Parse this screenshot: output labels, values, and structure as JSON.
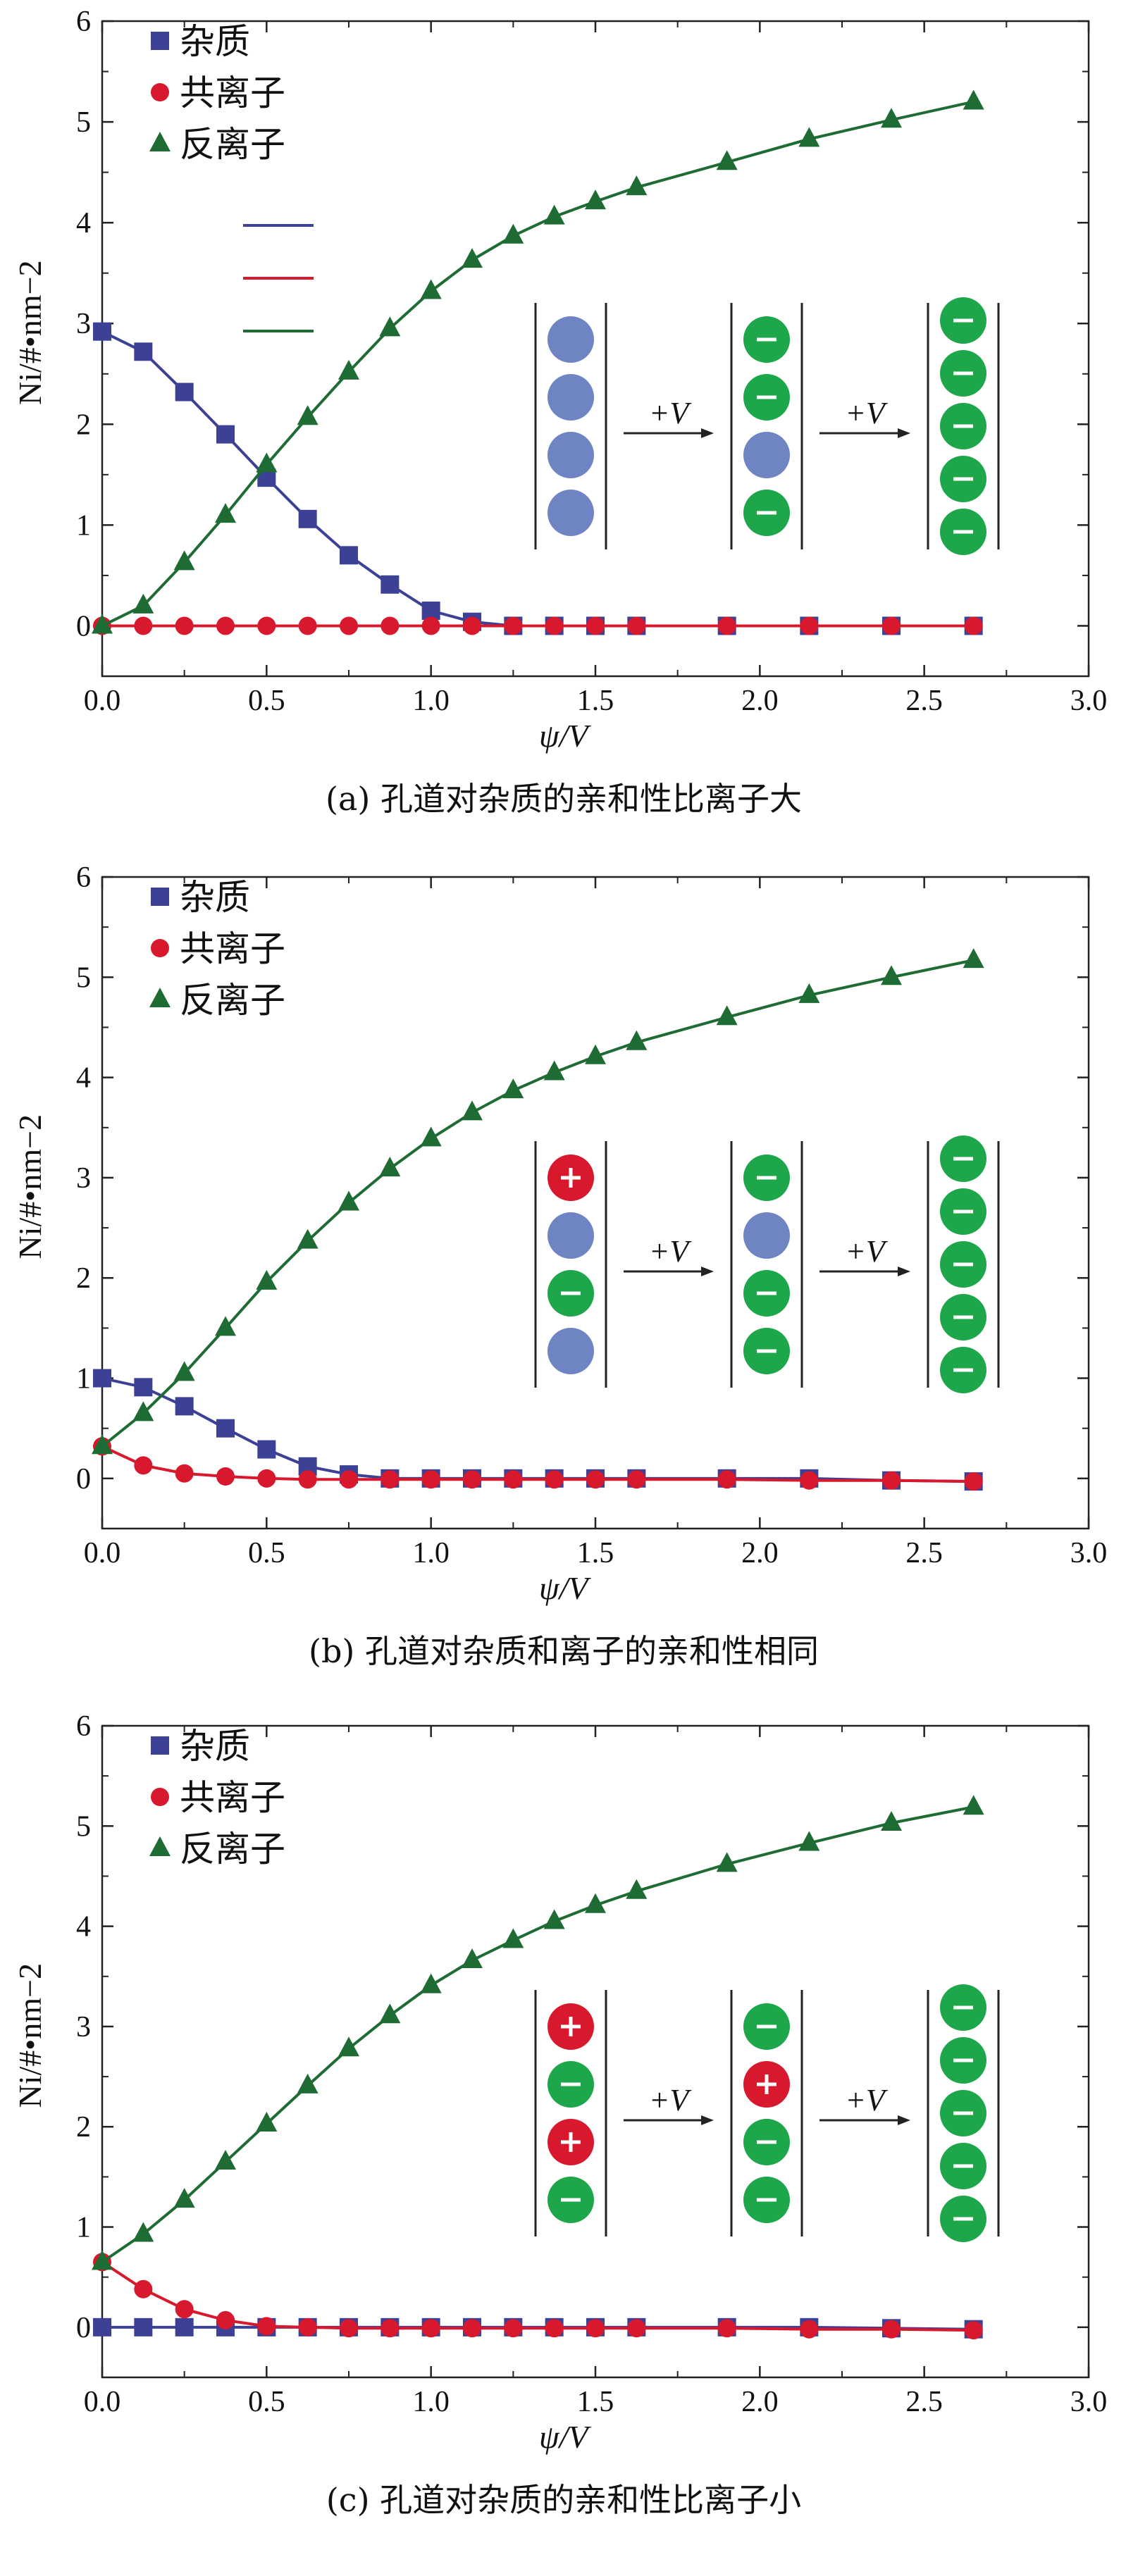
{
  "colors": {
    "impurity": "#3c4196",
    "co_ion": "#d8182c",
    "counter_ion": "#1e6b34",
    "neutral_ball": "#6f84c3",
    "anion_ball": "#1ea64a",
    "cation_ball": "#d8182c"
  },
  "chart_data": [
    {
      "type": "line",
      "caption": "(a) 孔道对杂质的亲和性比离子大",
      "xlabel": "ψ/V",
      "ylabel": "Ni/#•nm−2",
      "xlim": [
        0,
        3.0
      ],
      "ylim": [
        -0.5,
        6
      ],
      "xticks": [
        "0.0",
        "0.5",
        "1.0",
        "1.5",
        "2.0",
        "2.5",
        "3.0"
      ],
      "yticks": [
        "0",
        "1",
        "2",
        "3",
        "4",
        "5",
        "6"
      ],
      "legend_placement": "top-left",
      "series": [
        {
          "name": "杂质",
          "marker": "square",
          "color_key": "impurity",
          "x": [
            0,
            0.125,
            0.25,
            0.375,
            0.5,
            0.625,
            0.75,
            0.875,
            1.0,
            1.125,
            1.25,
            1.375,
            1.5,
            1.625,
            1.9,
            2.15,
            2.4,
            2.65
          ],
          "y": [
            2.92,
            2.72,
            2.32,
            1.9,
            1.47,
            1.06,
            0.7,
            0.41,
            0.15,
            0.04,
            0.0,
            0.0,
            0.0,
            0.0,
            0.0,
            0.0,
            0.0,
            0.0
          ]
        },
        {
          "name": "共离子",
          "marker": "circle",
          "color_key": "co_ion",
          "x": [
            0,
            0.125,
            0.25,
            0.375,
            0.5,
            0.625,
            0.75,
            0.875,
            1.0,
            1.125,
            1.25,
            1.375,
            1.5,
            1.625,
            1.9,
            2.15,
            2.4,
            2.65
          ],
          "y": [
            0.0,
            0.0,
            0.0,
            0.0,
            0.0,
            0.0,
            0.0,
            0.0,
            0.0,
            0.0,
            0.0,
            0.0,
            0.0,
            0.0,
            0.0,
            0.0,
            0.0,
            0.0
          ]
        },
        {
          "name": "反离子",
          "marker": "triangle",
          "color_key": "counter_ion",
          "x": [
            0,
            0.125,
            0.25,
            0.375,
            0.5,
            0.625,
            0.75,
            0.875,
            1.0,
            1.125,
            1.25,
            1.375,
            1.5,
            1.625,
            1.9,
            2.15,
            2.4,
            2.65
          ],
          "y": [
            0.0,
            0.2,
            0.63,
            1.1,
            1.6,
            2.07,
            2.52,
            2.95,
            3.32,
            3.63,
            3.87,
            4.06,
            4.21,
            4.35,
            4.6,
            4.83,
            5.02,
            5.2
          ]
        }
      ],
      "legend_extra_lines": true,
      "inset": {
        "arrow_label": "+V",
        "stages": [
          [
            "neutral",
            "neutral",
            "neutral",
            "neutral"
          ],
          [
            "anion",
            "anion",
            "neutral",
            "anion"
          ],
          [
            "anion",
            "anion",
            "anion",
            "anion",
            "anion"
          ]
        ]
      }
    },
    {
      "type": "line",
      "caption": "(b) 孔道对杂质和离子的亲和性相同",
      "xlabel": "ψ/V",
      "ylabel": "Ni/#•nm−2",
      "xlim": [
        0,
        3.0
      ],
      "ylim": [
        -0.5,
        6
      ],
      "xticks": [
        "0.0",
        "0.5",
        "1.0",
        "1.5",
        "2.0",
        "2.5",
        "3.0"
      ],
      "yticks": [
        "0",
        "1",
        "2",
        "3",
        "4",
        "5",
        "6"
      ],
      "legend_placement": "top-left",
      "series": [
        {
          "name": "杂质",
          "marker": "square",
          "color_key": "impurity",
          "x": [
            0,
            0.125,
            0.25,
            0.375,
            0.5,
            0.625,
            0.75,
            0.875,
            1.0,
            1.125,
            1.25,
            1.375,
            1.5,
            1.625,
            1.9,
            2.15,
            2.4,
            2.65
          ],
          "y": [
            1.0,
            0.91,
            0.72,
            0.5,
            0.29,
            0.12,
            0.04,
            0.0,
            0.0,
            0.0,
            0.0,
            0.0,
            0.0,
            0.0,
            0.0,
            0.0,
            -0.02,
            -0.03
          ]
        },
        {
          "name": "共离子",
          "marker": "circle",
          "color_key": "co_ion",
          "x": [
            0,
            0.125,
            0.25,
            0.375,
            0.5,
            0.625,
            0.75,
            0.875,
            1.0,
            1.125,
            1.25,
            1.375,
            1.5,
            1.625,
            1.9,
            2.15,
            2.4,
            2.65
          ],
          "y": [
            0.32,
            0.13,
            0.05,
            0.02,
            0.0,
            -0.01,
            -0.01,
            -0.01,
            -0.01,
            -0.01,
            -0.01,
            -0.01,
            -0.01,
            -0.01,
            -0.01,
            -0.02,
            -0.02,
            -0.03
          ]
        },
        {
          "name": "反离子",
          "marker": "triangle",
          "color_key": "counter_ion",
          "x": [
            0,
            0.125,
            0.25,
            0.375,
            0.5,
            0.625,
            0.75,
            0.875,
            1.0,
            1.125,
            1.25,
            1.375,
            1.5,
            1.625,
            1.9,
            2.15,
            2.4,
            2.65
          ],
          "y": [
            0.32,
            0.65,
            1.05,
            1.5,
            1.96,
            2.37,
            2.75,
            3.09,
            3.39,
            3.65,
            3.87,
            4.05,
            4.21,
            4.35,
            4.6,
            4.82,
            5.0,
            5.17
          ]
        }
      ],
      "legend_extra_lines": false,
      "inset": {
        "arrow_label": "+V",
        "stages": [
          [
            "cation",
            "neutral",
            "anion",
            "neutral"
          ],
          [
            "anion",
            "neutral",
            "anion",
            "anion"
          ],
          [
            "anion",
            "anion",
            "anion",
            "anion",
            "anion"
          ]
        ]
      }
    },
    {
      "type": "line",
      "caption": "(c) 孔道对杂质的亲和性比离子小",
      "xlabel": "ψ/V",
      "ylabel": "Ni/#•nm−2",
      "xlim": [
        0,
        3.0
      ],
      "ylim": [
        -0.5,
        6
      ],
      "xticks": [
        "0.0",
        "0.5",
        "1.0",
        "1.5",
        "2.0",
        "2.5",
        "3.0"
      ],
      "yticks": [
        "0",
        "1",
        "2",
        "3",
        "4",
        "5",
        "6"
      ],
      "legend_placement": "top-left",
      "series": [
        {
          "name": "杂质",
          "marker": "square",
          "color_key": "impurity",
          "x": [
            0,
            0.125,
            0.25,
            0.375,
            0.5,
            0.625,
            0.75,
            0.875,
            1.0,
            1.125,
            1.25,
            1.375,
            1.5,
            1.625,
            1.9,
            2.15,
            2.4,
            2.65
          ],
          "y": [
            0.0,
            0.0,
            0.0,
            0.0,
            0.0,
            0.0,
            0.0,
            0.0,
            0.0,
            0.0,
            0.0,
            0.0,
            0.0,
            0.0,
            0.0,
            0.0,
            -0.01,
            -0.02
          ]
        },
        {
          "name": "共离子",
          "marker": "circle",
          "color_key": "co_ion",
          "x": [
            0,
            0.125,
            0.25,
            0.375,
            0.5,
            0.625,
            0.75,
            0.875,
            1.0,
            1.125,
            1.25,
            1.375,
            1.5,
            1.625,
            1.9,
            2.15,
            2.4,
            2.65
          ],
          "y": [
            0.65,
            0.38,
            0.18,
            0.07,
            0.01,
            0.0,
            -0.01,
            -0.01,
            -0.01,
            -0.01,
            -0.01,
            -0.01,
            -0.01,
            -0.01,
            -0.01,
            -0.02,
            -0.02,
            -0.03
          ]
        },
        {
          "name": "反离子",
          "marker": "triangle",
          "color_key": "counter_ion",
          "x": [
            0,
            0.125,
            0.25,
            0.375,
            0.5,
            0.625,
            0.75,
            0.875,
            1.0,
            1.125,
            1.25,
            1.375,
            1.5,
            1.625,
            1.9,
            2.15,
            2.4,
            2.65
          ],
          "y": [
            0.65,
            0.93,
            1.27,
            1.65,
            2.03,
            2.41,
            2.78,
            3.11,
            3.41,
            3.66,
            3.86,
            4.05,
            4.21,
            4.35,
            4.62,
            4.83,
            5.03,
            5.19
          ]
        }
      ],
      "legend_extra_lines": false,
      "inset": {
        "arrow_label": "+V",
        "stages": [
          [
            "cation",
            "anion",
            "cation",
            "anion"
          ],
          [
            "anion",
            "cation",
            "anion",
            "anion"
          ],
          [
            "anion",
            "anion",
            "anion",
            "anion",
            "anion"
          ]
        ]
      }
    }
  ]
}
